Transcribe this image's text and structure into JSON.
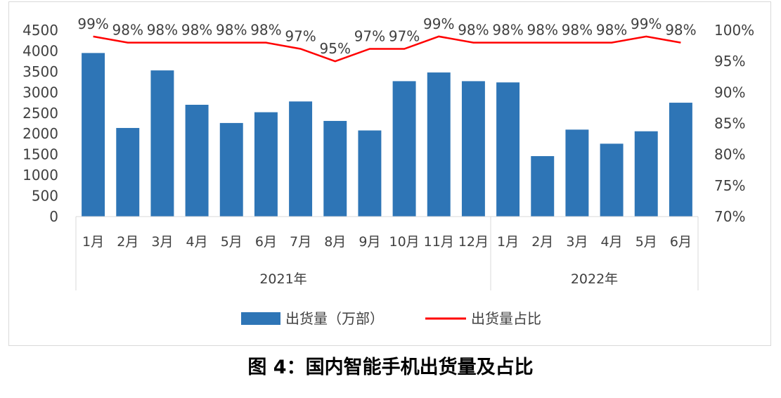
{
  "caption": "图 4：国内智能手机出货量及占比",
  "chart_data": {
    "type": "bar",
    "categories": [
      "1月",
      "2月",
      "3月",
      "4月",
      "5月",
      "6月",
      "7月",
      "8月",
      "9月",
      "10月",
      "11月",
      "12月",
      "1月",
      "2月",
      "3月",
      "4月",
      "5月",
      "6月"
    ],
    "groups": [
      {
        "label": "2021年",
        "count": 12
      },
      {
        "label": "2022年",
        "count": 6
      }
    ],
    "series": [
      {
        "name": "出货量（万部）",
        "type": "bar",
        "axis": "left",
        "color": "#2e75b6",
        "values": [
          3950,
          2140,
          3530,
          2700,
          2260,
          2520,
          2780,
          2310,
          2080,
          3270,
          3480,
          3270,
          3240,
          1460,
          2100,
          1760,
          2060,
          2750
        ]
      },
      {
        "name": "出货量占比",
        "type": "line",
        "axis": "right",
        "color": "#ff0000",
        "values": [
          99,
          98,
          98,
          98,
          98,
          98,
          97,
          95,
          97,
          97,
          99,
          98,
          98,
          98,
          98,
          98,
          99,
          98
        ],
        "labels": [
          "99%",
          "98%",
          "98%",
          "98%",
          "98%",
          "98%",
          "97%",
          "95%",
          "97%",
          "97%",
          "99%",
          "98%",
          "98%",
          "98%",
          "98%",
          "98%",
          "99%",
          "98%"
        ]
      }
    ],
    "y_left": {
      "min": 0,
      "max": 4500,
      "ticks": [
        0,
        500,
        1000,
        1500,
        2000,
        2500,
        3000,
        3500,
        4000,
        4500
      ]
    },
    "y_right": {
      "min": 70,
      "max": 100,
      "ticks": [
        70,
        75,
        80,
        85,
        90,
        95,
        100
      ],
      "tick_labels": [
        "70%",
        "75%",
        "80%",
        "85%",
        "90%",
        "95%",
        "100%"
      ]
    },
    "grid": false,
    "legend_position": "bottom"
  }
}
